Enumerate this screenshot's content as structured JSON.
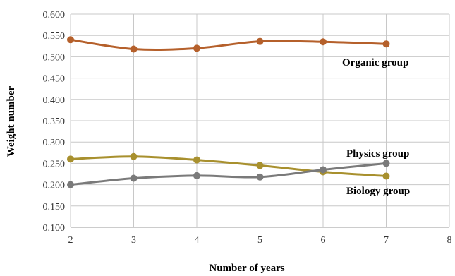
{
  "chart_data": {
    "type": "line",
    "xlabel": "Number of years",
    "ylabel": "Weight number",
    "xlim": [
      2,
      8
    ],
    "ylim": [
      0.1,
      0.6
    ],
    "x_ticks": [
      "2",
      "3",
      "4",
      "5",
      "6",
      "7",
      "8"
    ],
    "y_ticks": [
      "0.100",
      "0.150",
      "0.200",
      "0.250",
      "0.300",
      "0.350",
      "0.400",
      "0.450",
      "0.500",
      "0.550",
      "0.600"
    ],
    "grid": true,
    "x": [
      2,
      3,
      4,
      5,
      6,
      7
    ],
    "series": [
      {
        "name": "Organic group",
        "color": "#b5602b",
        "values": [
          0.54,
          0.518,
          0.52,
          0.536,
          0.535,
          0.53
        ]
      },
      {
        "name": "Physics group",
        "color": "#a8902e",
        "values": [
          0.26,
          0.266,
          0.258,
          0.245,
          0.23,
          0.22
        ]
      },
      {
        "name": "Biology group",
        "color": "#7a7a7a",
        "values": [
          0.2,
          0.215,
          0.221,
          0.218,
          0.235,
          0.25
        ]
      }
    ]
  }
}
